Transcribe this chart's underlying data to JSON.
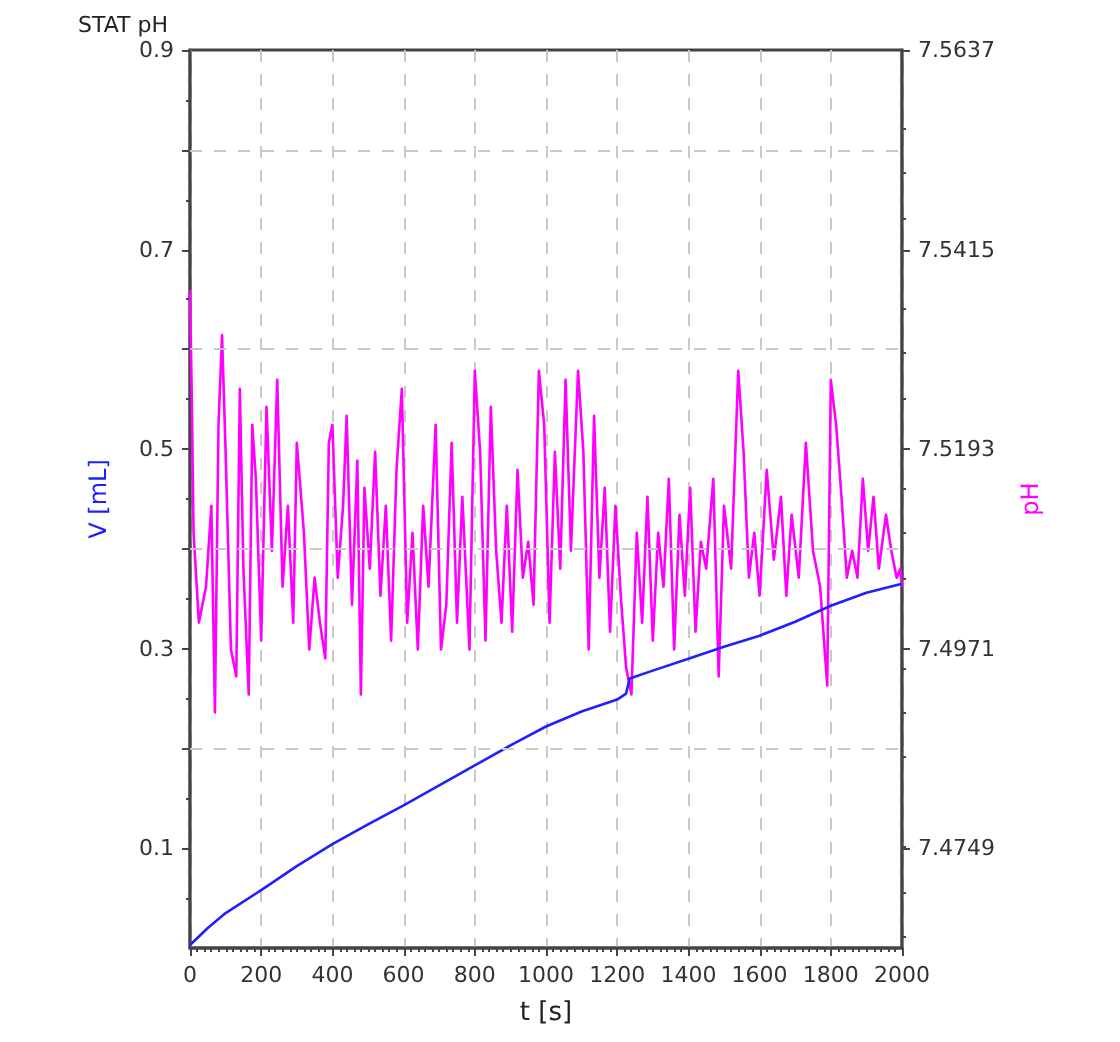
{
  "chart_data": {
    "type": "line",
    "title": "STAT pH",
    "xlabel": "t [s]",
    "ylabel": "V [mL]",
    "y2label": "pH",
    "xlim": [
      0,
      2000
    ],
    "xticks": [
      0,
      200,
      400,
      600,
      800,
      1000,
      1200,
      1400,
      1600,
      1800,
      2000
    ],
    "ylim": [
      0,
      0.9
    ],
    "yticks": [
      0.1,
      {
        "value": 0.2,
        "label": null
      },
      0.3,
      {
        "value": 0.4,
        "label": null
      },
      0.5,
      {
        "value": 0.6,
        "label": null
      },
      0.7,
      {
        "value": 0.8,
        "label": null
      },
      0.9
    ],
    "y2lim": [
      7.4638,
      7.5637
    ],
    "y2ticks": [
      7.4749,
      7.4971,
      7.5193,
      7.5415,
      7.5637
    ],
    "grid": true,
    "line_style": "solid",
    "marker": "none",
    "series": [
      {
        "color": "#2020ff",
        "x": [
          0,
          50,
          100,
          200,
          300,
          400,
          500,
          600,
          700,
          800,
          900,
          1000,
          1100,
          1200,
          1225,
          1235,
          1300,
          1400,
          1500,
          1600,
          1700,
          1800,
          1900,
          2000
        ],
        "values": [
          0.003,
          0.02,
          0.035,
          0.058,
          0.082,
          0.104,
          0.124,
          0.143,
          0.163,
          0.183,
          0.203,
          0.222,
          0.237,
          0.249,
          0.255,
          0.27,
          0.278,
          0.29,
          0.302,
          0.313,
          0.327,
          0.343,
          0.356,
          0.365
        ]
      },
      {
        "color": "#ff00ff",
        "axis": "y2",
        "x": [
          0,
          5,
          10,
          25,
          45,
          60,
          70,
          80,
          90,
          100,
          115,
          130,
          140,
          150,
          165,
          175,
          185,
          200,
          215,
          230,
          245,
          260,
          275,
          290,
          300,
          320,
          335,
          350,
          365,
          380,
          390,
          400,
          415,
          430,
          440,
          455,
          470,
          480,
          490,
          505,
          520,
          535,
          550,
          565,
          580,
          595,
          610,
          625,
          640,
          655,
          670,
          690,
          705,
          720,
          735,
          750,
          765,
          785,
          800,
          815,
          830,
          845,
          860,
          875,
          890,
          905,
          920,
          935,
          950,
          965,
          980,
          995,
          1010,
          1025,
          1040,
          1055,
          1070,
          1090,
          1105,
          1120,
          1135,
          1150,
          1165,
          1180,
          1195,
          1210,
          1225,
          1240,
          1255,
          1270,
          1285,
          1300,
          1315,
          1330,
          1345,
          1360,
          1375,
          1390,
          1405,
          1420,
          1435,
          1450,
          1470,
          1485,
          1500,
          1520,
          1540,
          1555,
          1570,
          1585,
          1600,
          1620,
          1640,
          1660,
          1675,
          1690,
          1710,
          1730,
          1750,
          1770,
          1790,
          1800,
          1815,
          1830,
          1845,
          1860,
          1875,
          1890,
          1905,
          1920,
          1935,
          1955,
          1970,
          1985,
          1995,
          2000
        ],
        "values": [
          7.537,
          7.525,
          7.51,
          7.5,
          7.504,
          7.513,
          7.49,
          7.522,
          7.532,
          7.519,
          7.497,
          7.494,
          7.526,
          7.506,
          7.492,
          7.522,
          7.516,
          7.498,
          7.524,
          7.508,
          7.527,
          7.504,
          7.513,
          7.5,
          7.52,
          7.51,
          7.497,
          7.505,
          7.5,
          7.496,
          7.52,
          7.522,
          7.505,
          7.513,
          7.523,
          7.502,
          7.518,
          7.492,
          7.515,
          7.506,
          7.519,
          7.503,
          7.513,
          7.498,
          7.517,
          7.526,
          7.5,
          7.51,
          7.497,
          7.513,
          7.504,
          7.522,
          7.497,
          7.502,
          7.52,
          7.5,
          7.514,
          7.497,
          7.528,
          7.519,
          7.498,
          7.524,
          7.508,
          7.5,
          7.513,
          7.499,
          7.517,
          7.505,
          7.509,
          7.502,
          7.528,
          7.522,
          7.5,
          7.519,
          7.506,
          7.527,
          7.508,
          7.528,
          7.519,
          7.497,
          7.523,
          7.505,
          7.515,
          7.499,
          7.513,
          7.503,
          7.495,
          7.492,
          7.51,
          7.5,
          7.514,
          7.498,
          7.51,
          7.504,
          7.516,
          7.497,
          7.512,
          7.503,
          7.515,
          7.499,
          7.509,
          7.506,
          7.516,
          7.494,
          7.513,
          7.506,
          7.528,
          7.519,
          7.505,
          7.51,
          7.503,
          7.517,
          7.507,
          7.514,
          7.503,
          7.512,
          7.505,
          7.52,
          7.508,
          7.504,
          7.493,
          7.527,
          7.522,
          7.514,
          7.505,
          7.508,
          7.505,
          7.516,
          7.508,
          7.514,
          7.506,
          7.512,
          7.508,
          7.505,
          7.506,
          7.504
        ]
      }
    ]
  }
}
